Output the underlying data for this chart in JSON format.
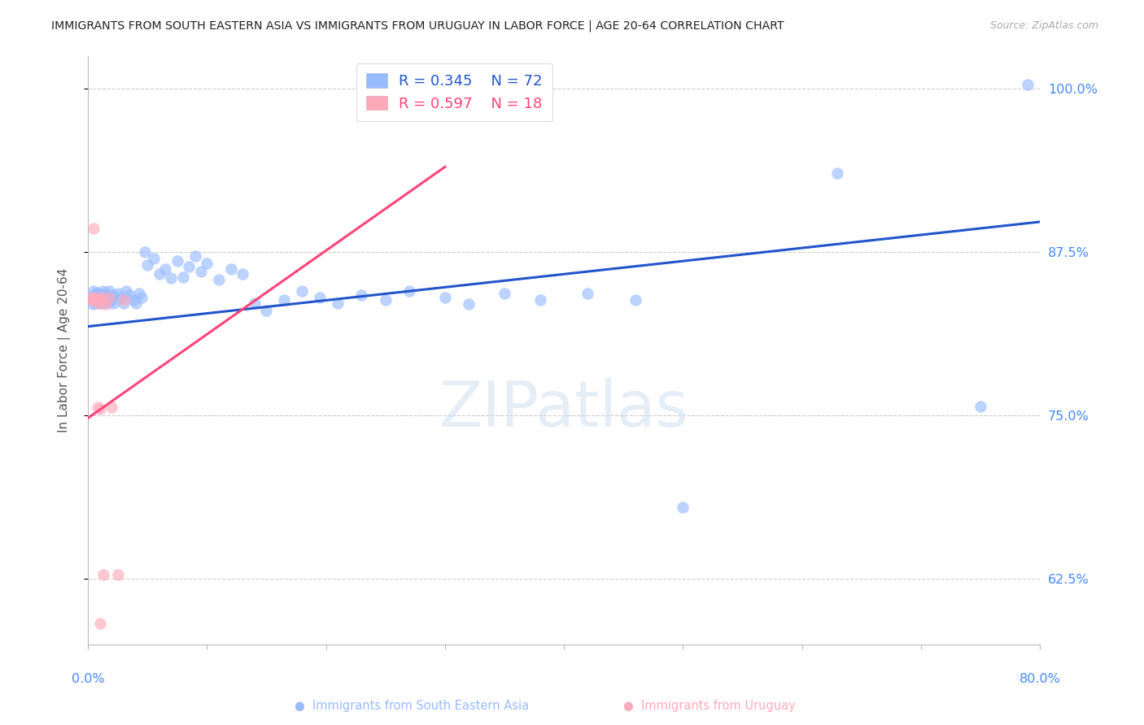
{
  "title": "IMMIGRANTS FROM SOUTH EASTERN ASIA VS IMMIGRANTS FROM URUGUAY IN LABOR FORCE | AGE 20-64 CORRELATION CHART",
  "source": "Source: ZipAtlas.com",
  "ylabel": "In Labor Force | Age 20-64",
  "yticks": [
    0.625,
    0.75,
    0.875,
    1.0
  ],
  "ytick_labels": [
    "62.5%",
    "75.0%",
    "87.5%",
    "100.0%"
  ],
  "xmin": 0.0,
  "xmax": 0.8,
  "ymin": 0.575,
  "ymax": 1.025,
  "legend_r_blue": "R = 0.345",
  "legend_n_blue": "N = 72",
  "legend_r_pink": "R = 0.597",
  "legend_n_pink": "N = 18",
  "color_blue": "#99bbff",
  "color_pink": "#ffaabb",
  "color_blue_line": "#2255cc",
  "color_pink_line": "#ff4477",
  "color_axis_label": "#4488ff",
  "watermark": "ZIPatlas",
  "figsize": [
    14.06,
    8.92
  ],
  "dpi": 100,
  "blue_x": [
    0.003,
    0.004,
    0.005,
    0.005,
    0.006,
    0.006,
    0.007,
    0.007,
    0.008,
    0.008,
    0.009,
    0.009,
    0.01,
    0.01,
    0.011,
    0.011,
    0.012,
    0.012,
    0.013,
    0.014,
    0.015,
    0.015,
    0.016,
    0.017,
    0.018,
    0.019,
    0.02,
    0.021,
    0.022,
    0.025,
    0.028,
    0.03,
    0.032,
    0.035,
    0.038,
    0.04,
    0.043,
    0.045,
    0.048,
    0.05,
    0.055,
    0.06,
    0.065,
    0.07,
    0.075,
    0.08,
    0.085,
    0.09,
    0.095,
    0.1,
    0.11,
    0.12,
    0.13,
    0.14,
    0.15,
    0.165,
    0.18,
    0.195,
    0.21,
    0.23,
    0.25,
    0.27,
    0.3,
    0.32,
    0.35,
    0.38,
    0.42,
    0.46,
    0.5,
    0.63,
    0.75,
    0.79
  ],
  "blue_y": [
    0.84,
    0.835,
    0.845,
    0.838,
    0.84,
    0.842,
    0.836,
    0.843,
    0.838,
    0.84,
    0.837,
    0.843,
    0.836,
    0.842,
    0.84,
    0.838,
    0.845,
    0.836,
    0.842,
    0.84,
    0.838,
    0.843,
    0.84,
    0.836,
    0.845,
    0.84,
    0.838,
    0.842,
    0.836,
    0.843,
    0.84,
    0.836,
    0.845,
    0.842,
    0.838,
    0.836,
    0.843,
    0.84,
    0.875,
    0.865,
    0.87,
    0.858,
    0.862,
    0.855,
    0.868,
    0.856,
    0.864,
    0.872,
    0.86,
    0.866,
    0.854,
    0.862,
    0.858,
    0.836,
    0.83,
    0.838,
    0.845,
    0.84,
    0.836,
    0.842,
    0.838,
    0.845,
    0.84,
    0.835,
    0.843,
    0.838,
    0.843,
    0.838,
    0.68,
    0.935,
    0.757,
    1.003
  ],
  "pink_x": [
    0.003,
    0.004,
    0.005,
    0.006,
    0.008,
    0.009,
    0.01,
    0.011,
    0.012,
    0.015,
    0.018,
    0.02,
    0.025,
    0.03,
    0.005,
    0.008,
    0.01,
    0.013
  ],
  "pink_y": [
    0.84,
    0.838,
    0.838,
    0.84,
    0.838,
    0.836,
    0.755,
    0.84,
    0.838,
    0.835,
    0.84,
    0.756,
    0.628,
    0.838,
    0.893,
    0.756,
    0.591,
    0.628
  ],
  "blue_trendline_x": [
    0.0,
    0.8
  ],
  "blue_trendline_y": [
    0.818,
    0.898
  ],
  "pink_trendline_x": [
    0.0,
    0.3
  ],
  "pink_trendline_y": [
    0.748,
    0.94
  ]
}
